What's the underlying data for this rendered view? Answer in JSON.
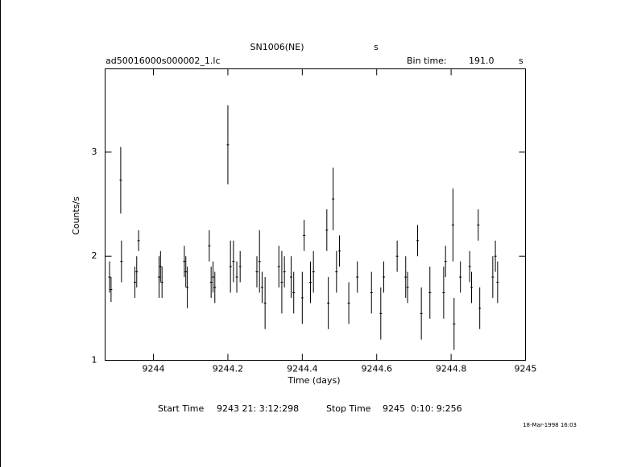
{
  "chart_data": {
    "type": "errorbar",
    "title": "SN1006(NE)",
    "title_unit": "s",
    "file_name": "ad50016000s000002_1.lc",
    "bin_time_label": "Bin time:",
    "bin_time": "191.0",
    "bin_time_unit": "s",
    "x_label": "Time (days)",
    "y_label": "Counts/s",
    "start_label": "Start Time",
    "start_time": "9243 21: 3:12:298",
    "stop_label": "Stop Time",
    "stop_time": "9245  0:10: 9:256",
    "date_stamp": "18-Mar-1998 16:03",
    "color": "#000000",
    "xlim": [
      9243.87,
      9245.0
    ],
    "xticks": [
      9244,
      9244.2,
      9244.4,
      9244.6,
      9244.8,
      9245
    ],
    "ylim": [
      1,
      3.8
    ],
    "yticks": [
      1,
      2,
      3
    ],
    "x": [
      9243.882,
      9243.886,
      9243.912,
      9243.914,
      9243.95,
      9243.955,
      9243.96,
      9244.015,
      9244.019,
      9244.023,
      9244.083,
      9244.087,
      9244.091,
      9244.15,
      9244.155,
      9244.16,
      9244.165,
      9244.2,
      9244.207,
      9244.215,
      9244.224,
      9244.233,
      9244.278,
      9244.285,
      9244.292,
      9244.3,
      9244.337,
      9244.345,
      9244.352,
      9244.37,
      9244.377,
      9244.4,
      9244.405,
      9244.422,
      9244.43,
      9244.466,
      9244.47,
      9244.483,
      9244.492,
      9244.5,
      9244.525,
      9244.548,
      9244.586,
      9244.611,
      9244.619,
      9244.655,
      9244.678,
      9244.683,
      9244.71,
      9244.72,
      9244.743,
      9244.78,
      9244.785,
      9244.805,
      9244.808,
      9244.825,
      9244.85,
      9244.855,
      9244.873,
      9244.877,
      9244.912,
      9244.919,
      9244.925
    ],
    "y": [
      1.8,
      1.68,
      2.73,
      1.95,
      1.75,
      1.85,
      2.15,
      1.8,
      1.9,
      1.75,
      1.95,
      1.85,
      1.7,
      2.1,
      1.75,
      1.8,
      1.7,
      3.07,
      1.9,
      1.95,
      1.8,
      1.9,
      1.85,
      1.95,
      1.7,
      1.55,
      1.9,
      1.75,
      1.85,
      1.8,
      1.65,
      1.6,
      2.2,
      1.75,
      1.85,
      2.25,
      1.55,
      2.55,
      1.85,
      2.05,
      1.55,
      1.8,
      1.65,
      1.45,
      1.8,
      2.0,
      1.8,
      1.7,
      2.15,
      1.45,
      1.65,
      1.65,
      1.95,
      2.3,
      1.35,
      1.8,
      1.9,
      1.7,
      2.3,
      1.5,
      1.8,
      2.0,
      1.75
    ],
    "err": [
      0.15,
      0.12,
      0.32,
      0.2,
      0.15,
      0.15,
      0.1,
      0.2,
      0.15,
      0.15,
      0.15,
      0.15,
      0.2,
      0.15,
      0.15,
      0.15,
      0.15,
      0.38,
      0.25,
      0.2,
      0.15,
      0.15,
      0.15,
      0.3,
      0.15,
      0.25,
      0.2,
      0.3,
      0.15,
      0.2,
      0.2,
      0.25,
      0.15,
      0.2,
      0.2,
      0.2,
      0.25,
      0.3,
      0.2,
      0.15,
      0.2,
      0.15,
      0.2,
      0.25,
      0.15,
      0.15,
      0.2,
      0.15,
      0.15,
      0.25,
      0.25,
      0.25,
      0.15,
      0.35,
      0.25,
      0.15,
      0.15,
      0.15,
      0.15,
      0.2,
      0.2,
      0.15,
      0.2
    ]
  }
}
